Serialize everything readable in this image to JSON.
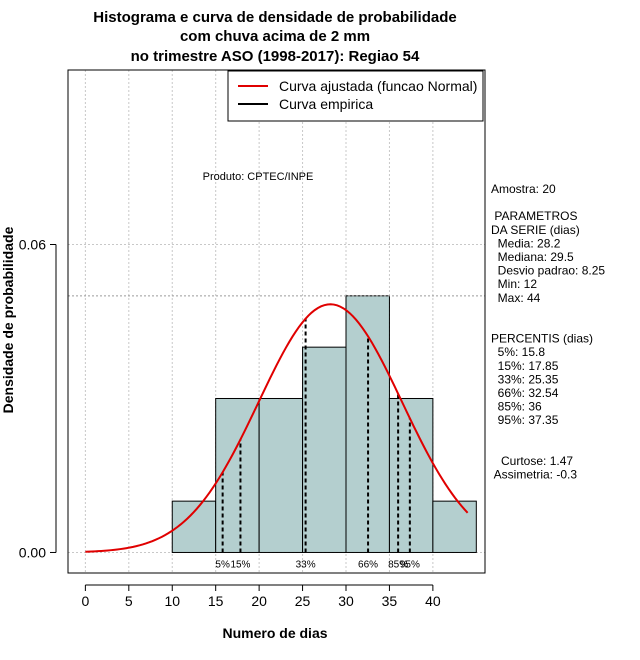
{
  "chart_data": {
    "type": "bar",
    "title_lines": [
      "Histograma e curva de densidade de probabilidade",
      "com chuva acima de 2 mm",
      "no trimestre ASO (1998-2017): Regiao 54"
    ],
    "xlabel": "Numero de dias",
    "ylabel": "Densidade de probabilidade",
    "xlim": [
      -2,
      46
    ],
    "ylim": [
      -0.004,
      0.094
    ],
    "x_ticks": [
      0,
      5,
      10,
      15,
      20,
      25,
      30,
      35,
      40
    ],
    "x_tick_labels": [
      "0",
      "5",
      "10",
      "15",
      "20",
      "25",
      "30",
      "35",
      "40"
    ],
    "y_ticks": [
      0.0,
      0.06
    ],
    "y_tick_labels": [
      "0.00",
      "0.06"
    ],
    "bins": [
      {
        "x0": 10,
        "x1": 15,
        "density": 0.01
      },
      {
        "x0": 15,
        "x1": 20,
        "density": 0.03
      },
      {
        "x0": 20,
        "x1": 25,
        "density": 0.03
      },
      {
        "x0": 25,
        "x1": 30,
        "density": 0.04
      },
      {
        "x0": 30,
        "x1": 35,
        "density": 0.05
      },
      {
        "x0": 35,
        "x1": 40,
        "density": 0.03
      },
      {
        "x0": 40,
        "x1": 45,
        "density": 0.01
      }
    ],
    "bar_color": "#b4cfcf",
    "curve": {
      "name": "Curva ajustada (funcao Normal)",
      "type": "normal",
      "mean": 28.2,
      "sd": 8.25,
      "x_range": [
        0,
        44
      ],
      "color": "#e00000"
    },
    "empirical": {
      "name": "Curva empirica",
      "color": "#000000"
    },
    "reference_line_y": 0.05,
    "percentile_lines": [
      {
        "label": "5%",
        "x": 15.8
      },
      {
        "label": "15%",
        "x": 17.85
      },
      {
        "label": "33%",
        "x": 25.35
      },
      {
        "label": "66%",
        "x": 32.54
      },
      {
        "label": "85%",
        "x": 36
      },
      {
        "label": "95%",
        "x": 37.35
      }
    ],
    "grid": true,
    "legend_position": "top-right",
    "annotation": "Produto: CPTEC/INPE",
    "side_text": [
      "Amostra: 20",
      "",
      " PARAMETROS",
      "DA SERIE (dias)",
      "  Media: 28.2",
      "  Mediana: 29.5",
      "  Desvio padrao: 8.25",
      "  Min: 12",
      "  Max: 44",
      "",
      "",
      "PERCENTIS (dias)",
      "  5%: 15.8",
      "  15%: 17.85",
      "  33%: 25.35",
      "  66%: 32.54",
      "  85%: 36",
      "  95%: 37.35",
      "",
      "",
      "   Curtose: 1.47",
      " Assimetria: -0.3"
    ]
  }
}
